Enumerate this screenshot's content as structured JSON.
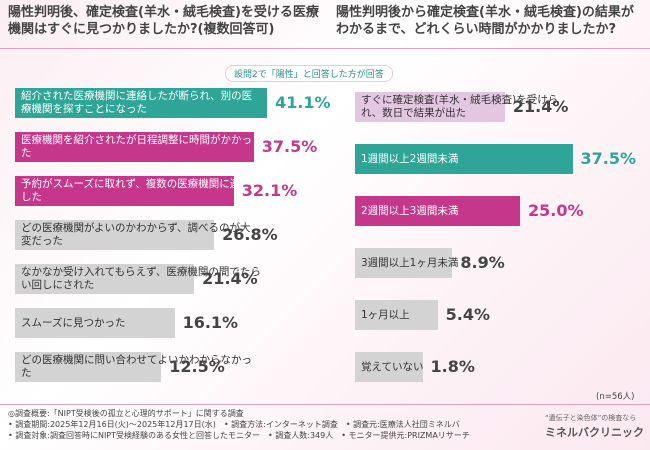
{
  "chart_data": [
    {
      "type": "bar",
      "orientation": "horizontal",
      "title": "陽性判明後、確定検査(羊水・絨毛検査)を受ける医療機関はすぐに見つかりましたか?(複数回答可)",
      "categories": [
        "紹介された医療機関に連絡したが断られ、別の医療機関を探すことになった",
        "医療機関を紹介されたが日程調整に時間がかかった",
        "予約がスムーズに取れず、複数の医療機関に連絡した",
        "どの医療機関がよいのかわからず、調べるのが大変だった",
        "なかなか受け入れてもらえず、医療機関の間でたらい回しにされた",
        "スムーズに見つかった",
        "どの医療機関に問い合わせてよいかわからなかった"
      ],
      "values": [
        41.1,
        37.5,
        32.1,
        26.8,
        21.4,
        16.1,
        12.5
      ],
      "value_labels": [
        "41.1%",
        "37.5%",
        "32.1%",
        "26.8%",
        "21.4%",
        "16.1%",
        "12.5%"
      ],
      "colors": [
        "#2ea597",
        "#c4378a",
        "#c4378a",
        "#d3d3d3",
        "#d3d3d3",
        "#d3d3d3",
        "#d3d3d3"
      ]
    },
    {
      "type": "bar",
      "orientation": "horizontal",
      "title": "陽性判明後から確定検査(羊水・絨毛検査)の結果がわかるまで、どれくらい時間がかかりましたか?",
      "categories": [
        "すぐに確定検査(羊水・絨毛検査)を受けられ、数日で結果が出た",
        "1週間以上2週間未満",
        "2週間以上3週間未満",
        "3週間以上1ヶ月未満",
        "1ヶ月以上",
        "覚えていない"
      ],
      "values": [
        21.4,
        37.5,
        25.0,
        8.9,
        5.4,
        1.8
      ],
      "value_labels": [
        "21.4%",
        "37.5%",
        "25.0%",
        "8.9%",
        "5.4%",
        "1.8%"
      ],
      "colors": [
        "#e3c6e0",
        "#2ea597",
        "#c4378a",
        "#d3d3d3",
        "#d3d3d3",
        "#d3d3d3"
      ],
      "note": "(n=56人)"
    }
  ],
  "subtitle": "設問2で「陽性」と回答した方が回答",
  "footnotes": [
    "◎調査概要:「NIPT受検後の孤立と心理的サポート」に関する調査",
    "• 調査期間:2025年12月16日(火)〜2025年12月17日(水)　• 調査方法:インターネット調査　• 調査元:医療法人社団ミネルバ",
    "• 調査対象:調査回答時にNIPT受検経験のある女性と回答したモニター　• 調査人数:349人　• モニター提供元:PRIZMAリサーチ"
  ],
  "logo": {
    "tagline": "“遺伝子と染色体”の検査なら",
    "name": "ミネルバクリニック"
  }
}
